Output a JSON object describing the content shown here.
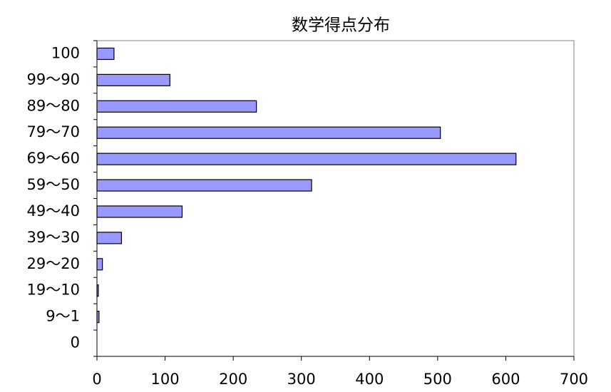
{
  "chart_data": {
    "type": "hbar",
    "title": "数学得点分布",
    "categories": [
      "100",
      "99〜90",
      "89〜80",
      "79〜70",
      "69〜60",
      "59〜50",
      "49〜40",
      "39〜30",
      "29〜20",
      "19〜10",
      "9〜1",
      "0"
    ],
    "values": [
      25,
      107,
      234,
      504,
      615,
      315,
      125,
      36,
      8,
      2,
      3,
      0
    ],
    "color": "#9999ff",
    "xlim": [
      0,
      700
    ],
    "xticks": [
      0,
      100,
      200,
      300,
      400,
      500,
      600,
      700
    ],
    "grid": false
  }
}
